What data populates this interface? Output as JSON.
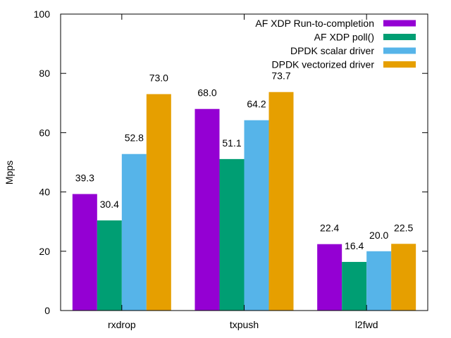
{
  "chart_data": {
    "type": "bar",
    "title": "",
    "xlabel": "",
    "ylabel": "Mpps",
    "ylim": [
      0,
      100
    ],
    "yticks": [
      0,
      20,
      40,
      60,
      80,
      100
    ],
    "grid": false,
    "legend_position": "top-right",
    "categories": [
      "rxdrop",
      "txpush",
      "l2fwd"
    ],
    "series": [
      {
        "name": "AF XDP Run-to-completion",
        "color": "#9400d3",
        "values": [
          39.3,
          68.0,
          22.4
        ],
        "labels": [
          "39.3",
          "68.0",
          "22.4"
        ]
      },
      {
        "name": "AF XDP poll()",
        "color": "#009e73",
        "values": [
          30.4,
          51.1,
          16.4
        ],
        "labels": [
          "30.4",
          "51.1",
          "16.4"
        ]
      },
      {
        "name": "DPDK scalar driver",
        "color": "#56b4e9",
        "values": [
          52.8,
          64.2,
          20.0
        ],
        "labels": [
          "52.8",
          "64.2",
          "20.0"
        ]
      },
      {
        "name": "DPDK vectorized driver",
        "color": "#e69f00",
        "values": [
          73.0,
          73.7,
          22.5
        ],
        "labels": [
          "73.0",
          "73.7",
          "22.5"
        ]
      }
    ]
  }
}
